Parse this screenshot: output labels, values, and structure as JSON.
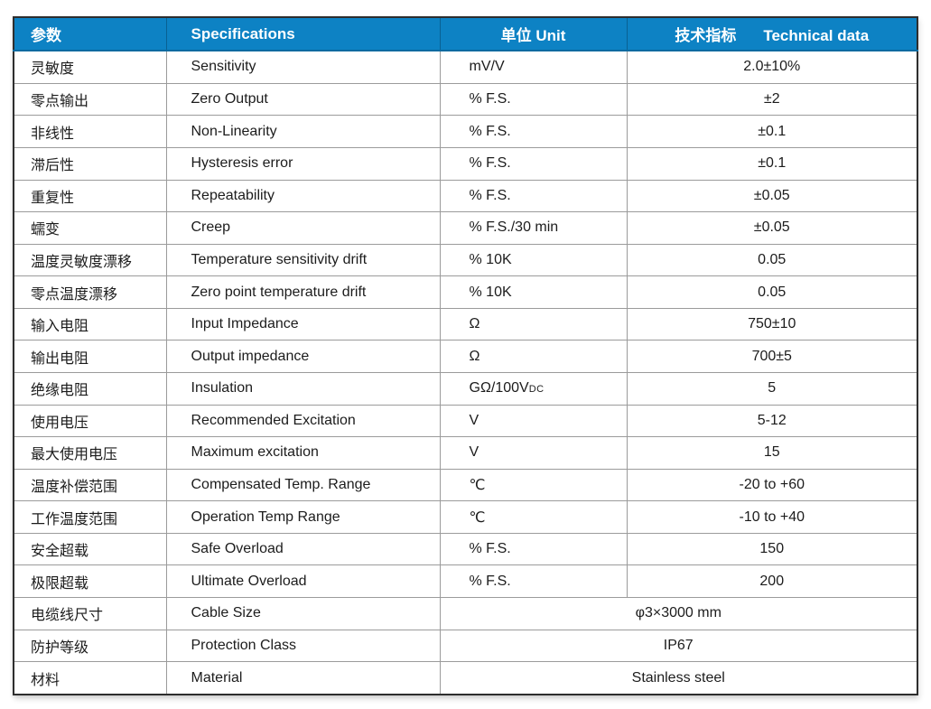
{
  "colors": {
    "header_bg": "#0d82c4",
    "header_fg": "#ffffff",
    "grid_line": "#9b9b9b",
    "outer_border": "#2e2e2e",
    "body_text": "#1c1c1c"
  },
  "table": {
    "headers": {
      "param_zh": "参数",
      "spec_en": "Specifications",
      "unit_zh": "单位",
      "unit_en": "Unit",
      "tech_zh": "技术指标",
      "tech_en": "Technical data"
    },
    "rows": [
      {
        "param_zh": "灵敏度",
        "spec": "Sensitivity",
        "unit": "mV/V",
        "value": "2.0±10%"
      },
      {
        "param_zh": "零点输出",
        "spec": "Zero Output",
        "unit": "% F.S.",
        "value": "±2"
      },
      {
        "param_zh": "非线性",
        "spec": "Non-Linearity",
        "unit": "% F.S.",
        "value": "±0.1"
      },
      {
        "param_zh": "滞后性",
        "spec": "Hysteresis error",
        "unit": "% F.S.",
        "value": "±0.1"
      },
      {
        "param_zh": "重复性",
        "spec": "Repeatability",
        "unit": "% F.S.",
        "value": "±0.05"
      },
      {
        "param_zh": "蠕变",
        "spec": "Creep",
        "unit": "% F.S./30 min",
        "value": "±0.05"
      },
      {
        "param_zh": "温度灵敏度漂移",
        "spec": "Temperature sensitivity drift",
        "unit": "% 10K",
        "value": "0.05"
      },
      {
        "param_zh": "零点温度漂移",
        "spec": "Zero point temperature drift",
        "unit": "% 10K",
        "value": "0.05"
      },
      {
        "param_zh": "输入电阻",
        "spec": "Input Impedance",
        "unit": "Ω",
        "value": "750±10"
      },
      {
        "param_zh": "输出电阻",
        "spec": "Output impedance",
        "unit": "Ω",
        "value": "700±5"
      },
      {
        "param_zh": "绝缘电阻",
        "spec": "Insulation",
        "unit": "GΩ/100V",
        "unit_sub": "DC",
        "value": "5"
      },
      {
        "param_zh": "使用电压",
        "spec": "Recommended Excitation",
        "unit": "V",
        "value": "5-12"
      },
      {
        "param_zh": "最大使用电压",
        "spec": "Maximum excitation",
        "unit": "V",
        "value": "15"
      },
      {
        "param_zh": "温度补偿范围",
        "spec": "Compensated Temp. Range",
        "unit": "℃",
        "value": "-20 to +60"
      },
      {
        "param_zh": "工作温度范围",
        "spec": "Operation Temp Range",
        "unit": "℃",
        "value": "-10 to +40"
      },
      {
        "param_zh": "安全超载",
        "spec": "Safe Overload",
        "unit": "% F.S.",
        "value": "150"
      },
      {
        "param_zh": "极限超载",
        "spec": "Ultimate Overload",
        "unit": "% F.S.",
        "value": "200"
      },
      {
        "param_zh": "电缆线尺寸",
        "spec": "Cable Size",
        "merged": true,
        "value": "φ3×3000 mm"
      },
      {
        "param_zh": "防护等级",
        "spec": "Protection Class",
        "merged": true,
        "value": "IP67"
      },
      {
        "param_zh": "材料",
        "spec": "Material",
        "merged": true,
        "value": "Stainless steel"
      }
    ]
  }
}
